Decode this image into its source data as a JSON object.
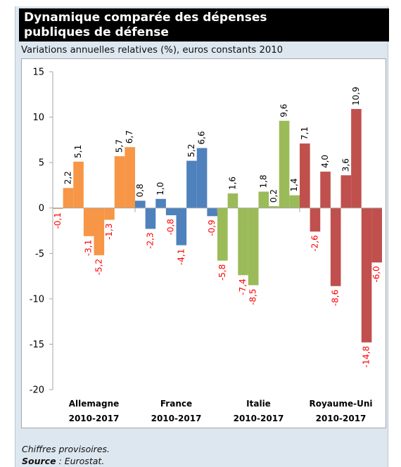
{
  "title_lines": [
    "Dynamique comparée des dépenses",
    "publiques de défense"
  ],
  "subtitle": "Variations annuelles relatives (%), euros constants 2010",
  "note": "Chiffres provisoires.",
  "source": {
    "label": "Source",
    "text": " : Eurostat."
  },
  "chart_data": {
    "type": "bar",
    "title": "",
    "xlabel": "",
    "ylabel": "",
    "ylim": [
      -20,
      15
    ],
    "yticks": [
      15,
      10,
      5,
      0,
      -5,
      -10,
      -15,
      -20
    ],
    "grid": false,
    "legend": "none",
    "groups": [
      {
        "name": "Allemagne",
        "period": "2010-2017",
        "color": "#f79646",
        "values": [
          -0.1,
          2.2,
          5.1,
          -3.1,
          -5.2,
          -1.3,
          5.7,
          6.7
        ],
        "labels": [
          "-0,1",
          "2,2",
          "5,1",
          "-3,1",
          "-5,2",
          "-1,3",
          "5,7",
          "6,7"
        ]
      },
      {
        "name": "France",
        "period": "2010-2017",
        "color": "#4f81bd",
        "values": [
          0.8,
          -2.3,
          1.0,
          -0.8,
          -4.1,
          5.2,
          6.6,
          -0.9
        ],
        "labels": [
          "0,8",
          "-2,3",
          "1,0",
          "-0,8",
          "-4,1",
          "5,2",
          "6,6",
          "-0,9"
        ]
      },
      {
        "name": "Italie",
        "period": "2010-2017",
        "color": "#9bbb59",
        "values": [
          -5.8,
          1.6,
          -7.4,
          -8.5,
          1.8,
          0.2,
          9.6,
          1.4
        ],
        "labels": [
          "-5,8",
          "1,6",
          "-7,4",
          "-8,5",
          "1,8",
          "0,2",
          "9,6",
          "1,4"
        ]
      },
      {
        "name": "Royaume-Uni",
        "period": "2010-2017",
        "color": "#c0504d",
        "values": [
          7.1,
          -2.6,
          4.0,
          -8.6,
          3.6,
          10.9,
          -14.8,
          -6.0
        ],
        "labels": [
          "7,1",
          "-2,6",
          "4,0",
          "-8,6",
          "3,6",
          "10,9",
          "-14,8",
          "-6,0"
        ]
      }
    ],
    "colors": {
      "positive_label": "#000000",
      "negative_label": "#ff0000",
      "axis": "#a6a6a6"
    }
  }
}
